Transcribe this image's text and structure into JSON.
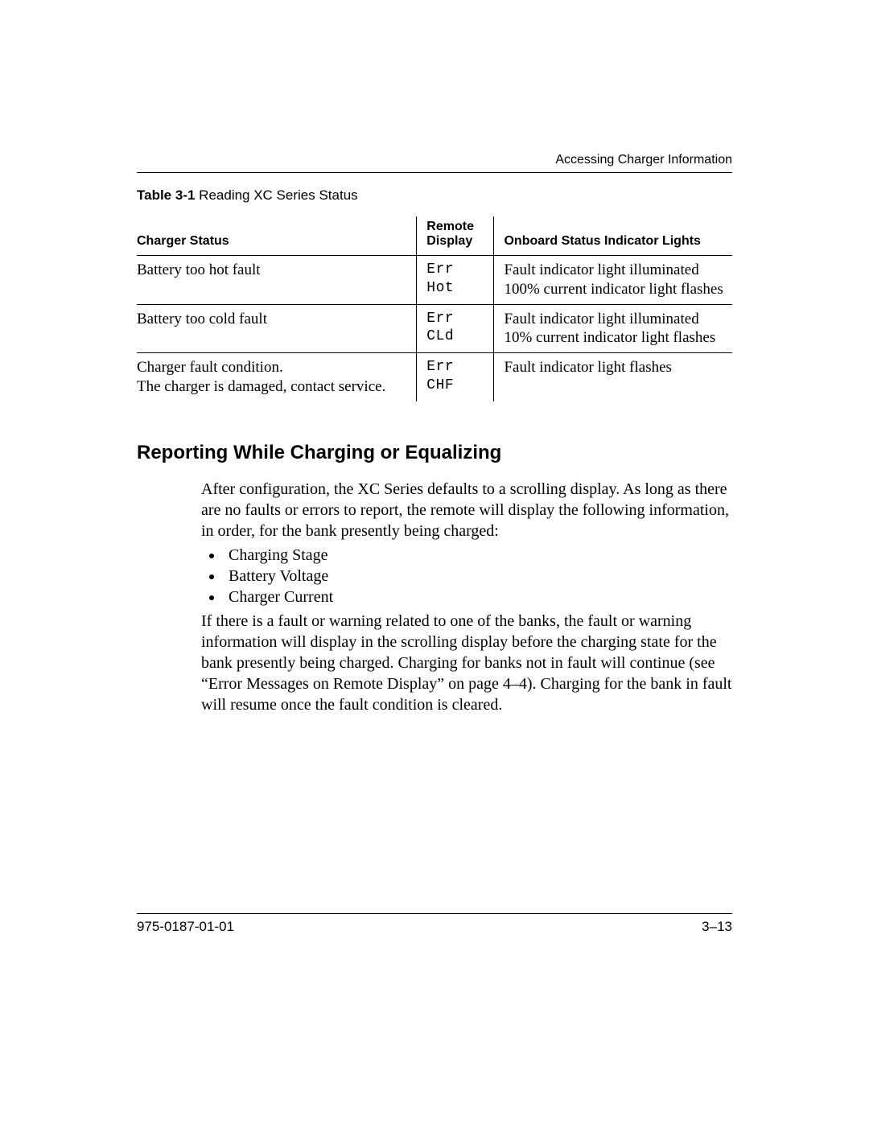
{
  "header": {
    "running": "Accessing Charger Information"
  },
  "table": {
    "caption_bold": "Table 3-1",
    "caption_rest": "Reading XC Series Status",
    "columns": {
      "status": "Charger Status",
      "remote": "Remote Display",
      "lights": "Onboard Status Indicator Lights"
    },
    "rows": [
      {
        "status": "Battery too hot fault",
        "remote1": "Err",
        "remote2": "Hot",
        "lights1": "Fault indicator light illuminated",
        "lights2": "100% current indicator light flashes"
      },
      {
        "status": "Battery too cold fault",
        "remote1": "Err",
        "remote2": "CLd",
        "lights1": "Fault indicator light illuminated",
        "lights2": "10% current indicator light flashes"
      },
      {
        "status1": "Charger fault condition.",
        "status2": "The charger is damaged, contact service.",
        "remote1": "Err",
        "remote2": "CHF",
        "lights1": "Fault indicator light flashes",
        "lights2": ""
      }
    ]
  },
  "section": {
    "heading": "Reporting While Charging or Equalizing",
    "para1": "After configuration, the XC Series defaults to a scrolling display. As long as there are no faults or errors to report, the remote will display the following information, in order, for the bank presently being charged:",
    "bullets": [
      "Charging Stage",
      "Battery Voltage",
      "Charger Current"
    ],
    "para2": "If there is a fault or warning related to one of the banks, the fault or warning information will display in the scrolling display before the charging state for the bank presently being charged. Charging for banks not in fault will continue (see “Error Messages on Remote Display” on page 4–4). Charging for the bank in fault will resume once the fault condition is cleared."
  },
  "footer": {
    "doc_number": "975-0187-01-01",
    "page_number": "3–13"
  }
}
